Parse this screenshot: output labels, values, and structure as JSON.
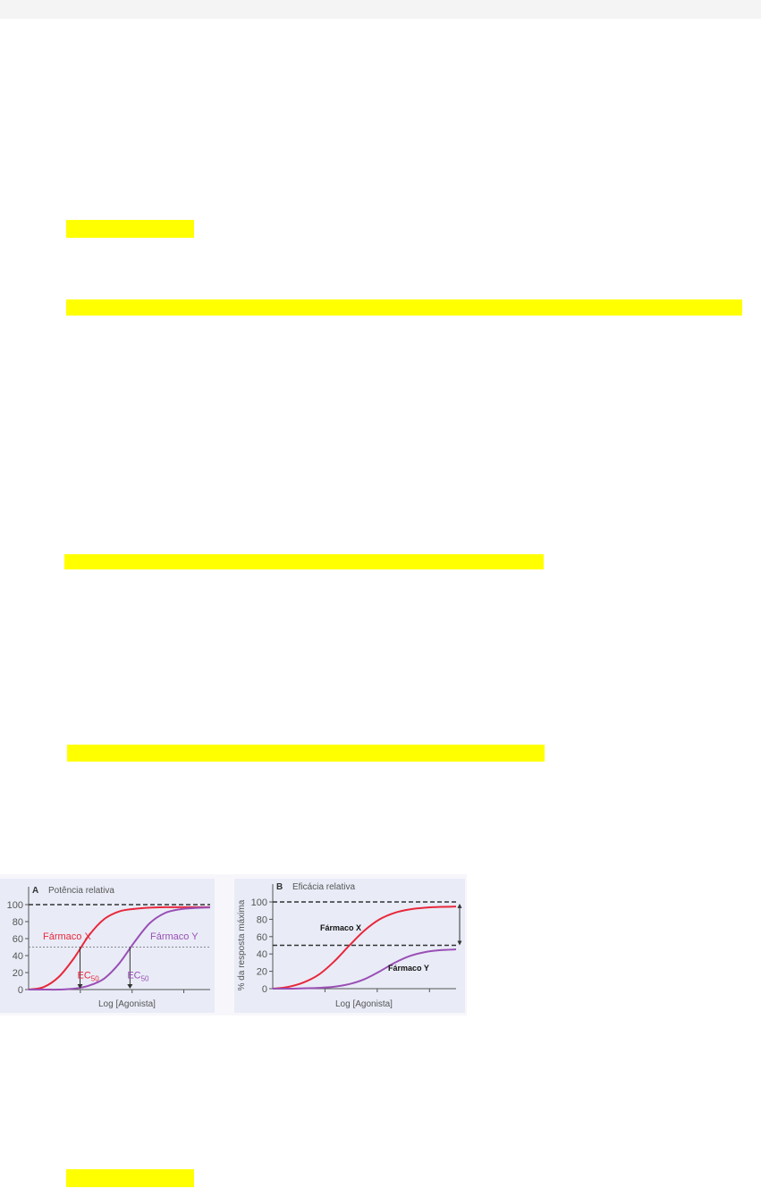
{
  "highlight_color": "#ffff00",
  "figure": {
    "chart_data": [
      {
        "type": "line",
        "panel_label": "A",
        "title": "Potência relativa",
        "xlabel": "Log [Agonista]",
        "ylabel": "",
        "yticks": [
          0,
          20,
          40,
          60,
          80,
          100
        ],
        "ylim": [
          0,
          100
        ],
        "x": [
          0,
          1,
          2,
          3,
          4,
          5,
          6,
          7,
          8,
          9,
          10,
          11,
          12
        ],
        "reference_lines": [
          {
            "y": 100,
            "style": "dashed"
          },
          {
            "y": 50,
            "style": "dotted"
          }
        ],
        "series": [
          {
            "name": "Fármaco X",
            "color": "#e8283c",
            "values": [
              0,
              3,
              15,
              37,
              64,
              83,
              92,
              95,
              96.5,
              97,
              97,
              97,
              97
            ]
          },
          {
            "name": "Fármaco Y",
            "color": "#9a4fb5",
            "values": [
              0,
              0,
              0,
              1,
              4.7,
              13,
              31,
              56,
              78,
              90,
              94.5,
              96,
              96.7
            ]
          }
        ],
        "annotations": [
          {
            "text": "EC",
            "sub": "50",
            "x": 3.4,
            "color": "#e8283c"
          },
          {
            "text": "EC",
            "sub": "50",
            "x": 6.7,
            "color": "#9a4fb5"
          }
        ]
      },
      {
        "type": "line",
        "panel_label": "B",
        "title": "Eficácia relativa",
        "xlabel": "Log [Agonista]",
        "ylabel": "% da resposta máxima",
        "yticks": [
          0,
          20,
          40,
          60,
          80,
          100
        ],
        "ylim": [
          0,
          100
        ],
        "x": [
          0,
          1,
          2,
          3,
          4,
          5,
          6,
          7,
          8,
          9,
          10,
          11,
          12
        ],
        "reference_lines": [
          {
            "y": 100,
            "style": "dashed"
          },
          {
            "y": 50,
            "style": "dashed"
          }
        ],
        "series": [
          {
            "name": "Fármaco X",
            "color": "#e8283c",
            "values": [
              0,
              2,
              7,
              16,
              31,
              49.5,
              67,
              80,
              87.6,
              91.5,
              93.4,
              94.3,
              94.7
            ]
          },
          {
            "name": "Fármaco Y",
            "color": "#9a4fb5",
            "values": [
              0,
              0,
              0.4,
              0.9,
              2.2,
              5.2,
              10.9,
              19.9,
              30,
              37.8,
              42.3,
              44.4,
              45.3
            ]
          }
        ]
      }
    ]
  }
}
